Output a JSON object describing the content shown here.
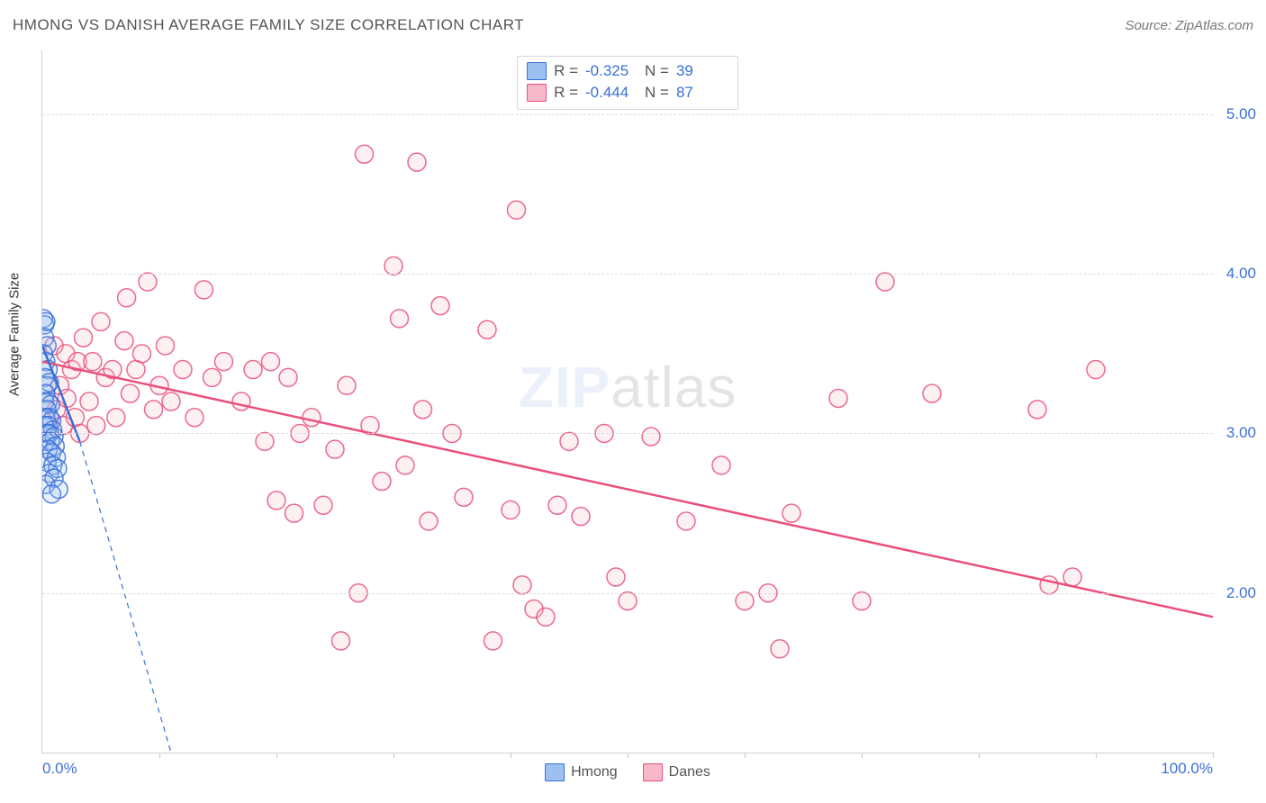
{
  "header": {
    "title": "HMONG VS DANISH AVERAGE FAMILY SIZE CORRELATION CHART",
    "source_label": "Source: ZipAtlas.com"
  },
  "chart": {
    "type": "scatter",
    "xlim": [
      0,
      100
    ],
    "ylim": [
      1.0,
      5.4
    ],
    "y_ticks": [
      2.0,
      3.0,
      4.0,
      5.0
    ],
    "y_tick_labels": [
      "2.00",
      "3.00",
      "4.00",
      "5.00"
    ],
    "x_tick_label_min": "0.0%",
    "x_tick_label_max": "100.0%",
    "x_minor_ticks": [
      10,
      20,
      30,
      40,
      50,
      60,
      70,
      80,
      90,
      100
    ],
    "ylabel": "Average Family Size",
    "marker_radius": 10,
    "grid_color": "#dcdcdc",
    "background": "#ffffff",
    "watermark_prefix": "ZIP",
    "watermark_suffix": "atlas"
  },
  "series": {
    "hmong": {
      "label": "Hmong",
      "color_fill": "#9cc1f0",
      "color_stroke": "#3a6fd8",
      "r_label": "R =",
      "r_value": "-0.325",
      "n_label": "N =",
      "n_value": "39",
      "trend_solid": {
        "x1": 0.0,
        "y1": 3.55,
        "x2": 3.2,
        "y2": 2.95
      },
      "trend_dash": {
        "x1": 3.2,
        "y1": 2.95,
        "x2": 11.0,
        "y2": 1.0
      },
      "points": [
        [
          0.1,
          3.72
        ],
        [
          0.2,
          3.68
        ],
        [
          0.3,
          3.7
        ],
        [
          0.2,
          3.6
        ],
        [
          0.4,
          3.55
        ],
        [
          0.1,
          3.5
        ],
        [
          0.3,
          3.45
        ],
        [
          0.5,
          3.4
        ],
        [
          0.2,
          3.35
        ],
        [
          0.4,
          3.3
        ],
        [
          0.6,
          3.32
        ],
        [
          0.3,
          3.25
        ],
        [
          0.5,
          3.2
        ],
        [
          0.2,
          3.2
        ],
        [
          0.7,
          3.18
        ],
        [
          0.4,
          3.15
        ],
        [
          0.6,
          3.1
        ],
        [
          0.3,
          3.1
        ],
        [
          0.8,
          3.08
        ],
        [
          0.5,
          3.05
        ],
        [
          0.2,
          3.05
        ],
        [
          0.9,
          3.02
        ],
        [
          0.4,
          3.0
        ],
        [
          0.6,
          3.0
        ],
        [
          1.0,
          2.98
        ],
        [
          0.3,
          2.95
        ],
        [
          0.7,
          2.95
        ],
        [
          1.1,
          2.92
        ],
        [
          0.5,
          2.9
        ],
        [
          0.8,
          2.88
        ],
        [
          1.2,
          2.85
        ],
        [
          0.4,
          2.82
        ],
        [
          0.9,
          2.8
        ],
        [
          1.3,
          2.78
        ],
        [
          0.6,
          2.75
        ],
        [
          1.0,
          2.72
        ],
        [
          0.3,
          2.68
        ],
        [
          1.4,
          2.65
        ],
        [
          0.8,
          2.62
        ]
      ]
    },
    "danes": {
      "label": "Danes",
      "color_fill": "#f7b9c9",
      "color_stroke": "#e94f7a",
      "r_label": "R =",
      "r_value": "-0.444",
      "n_label": "N =",
      "n_value": "87",
      "trend_solid": {
        "x1": 0.0,
        "y1": 3.45,
        "x2": 100.0,
        "y2": 1.85
      },
      "points": [
        [
          1.0,
          3.55
        ],
        [
          1.2,
          3.15
        ],
        [
          1.5,
          3.3
        ],
        [
          1.8,
          3.05
        ],
        [
          2.0,
          3.5
        ],
        [
          2.1,
          3.22
        ],
        [
          2.5,
          3.4
        ],
        [
          2.8,
          3.1
        ],
        [
          3.0,
          3.45
        ],
        [
          3.2,
          3.0
        ],
        [
          3.5,
          3.6
        ],
        [
          4.0,
          3.2
        ],
        [
          4.3,
          3.45
        ],
        [
          4.6,
          3.05
        ],
        [
          5.0,
          3.7
        ],
        [
          5.4,
          3.35
        ],
        [
          6.0,
          3.4
        ],
        [
          6.3,
          3.1
        ],
        [
          7.0,
          3.58
        ],
        [
          7.2,
          3.85
        ],
        [
          7.5,
          3.25
        ],
        [
          8.0,
          3.4
        ],
        [
          8.5,
          3.5
        ],
        [
          9.0,
          3.95
        ],
        [
          9.5,
          3.15
        ],
        [
          10.0,
          3.3
        ],
        [
          10.5,
          3.55
        ],
        [
          11.0,
          3.2
        ],
        [
          12.0,
          3.4
        ],
        [
          13.0,
          3.1
        ],
        [
          13.8,
          3.9
        ],
        [
          14.5,
          3.35
        ],
        [
          15.5,
          3.45
        ],
        [
          17.0,
          3.2
        ],
        [
          18.0,
          3.4
        ],
        [
          19.0,
          2.95
        ],
        [
          19.5,
          3.45
        ],
        [
          20.0,
          2.58
        ],
        [
          21.0,
          3.35
        ],
        [
          21.5,
          2.5
        ],
        [
          22.0,
          3.0
        ],
        [
          23.0,
          3.1
        ],
        [
          24.0,
          2.55
        ],
        [
          25.0,
          2.9
        ],
        [
          25.5,
          1.7
        ],
        [
          26.0,
          3.3
        ],
        [
          27.0,
          2.0
        ],
        [
          27.5,
          4.75
        ],
        [
          28.0,
          3.05
        ],
        [
          29.0,
          2.7
        ],
        [
          30.0,
          4.05
        ],
        [
          30.5,
          3.72
        ],
        [
          31.0,
          2.8
        ],
        [
          32.0,
          4.7
        ],
        [
          32.5,
          3.15
        ],
        [
          33.0,
          2.45
        ],
        [
          34.0,
          3.8
        ],
        [
          35.0,
          3.0
        ],
        [
          36.0,
          2.6
        ],
        [
          38.0,
          3.65
        ],
        [
          38.5,
          1.7
        ],
        [
          40.0,
          2.52
        ],
        [
          40.5,
          4.4
        ],
        [
          41.0,
          2.05
        ],
        [
          42.0,
          1.9
        ],
        [
          43.0,
          1.85
        ],
        [
          44.0,
          2.55
        ],
        [
          45.0,
          2.95
        ],
        [
          46.0,
          2.48
        ],
        [
          48.0,
          3.0
        ],
        [
          49.0,
          2.1
        ],
        [
          50.0,
          1.95
        ],
        [
          52.0,
          2.98
        ],
        [
          55.0,
          2.45
        ],
        [
          58.0,
          2.8
        ],
        [
          60.0,
          1.95
        ],
        [
          62.0,
          2.0
        ],
        [
          63.0,
          1.65
        ],
        [
          64.0,
          2.5
        ],
        [
          68.0,
          3.22
        ],
        [
          70.0,
          1.95
        ],
        [
          72.0,
          3.95
        ],
        [
          76.0,
          3.25
        ],
        [
          85.0,
          3.15
        ],
        [
          86.0,
          2.05
        ],
        [
          88.0,
          2.1
        ],
        [
          90.0,
          3.4
        ]
      ]
    }
  }
}
